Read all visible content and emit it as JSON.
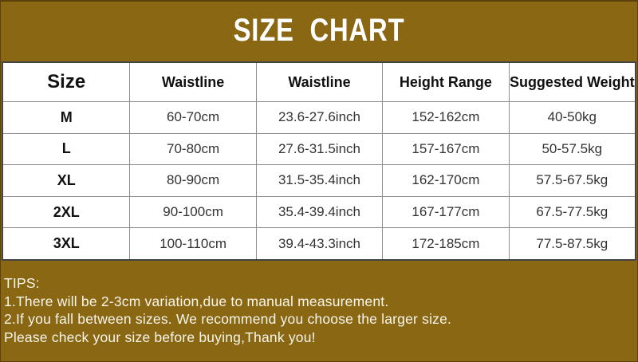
{
  "header": {
    "title": "SIZE CHART"
  },
  "chart_data": {
    "type": "table",
    "title": "SIZE CHART",
    "columns": [
      "Size",
      "Waistline",
      "Waistline",
      "Height Range",
      "Suggested Weight"
    ],
    "rows": [
      [
        "M",
        "60-70cm",
        "23.6-27.6inch",
        "152-162cm",
        "40-50kg"
      ],
      [
        "L",
        "70-80cm",
        "27.6-31.5inch",
        "157-167cm",
        "50-57.5kg"
      ],
      [
        "XL",
        "80-90cm",
        "31.5-35.4inch",
        "162-170cm",
        "57.5-67.5kg"
      ],
      [
        "2XL",
        "90-100cm",
        "35.4-39.4inch",
        "167-177cm",
        "67.5-77.5kg"
      ],
      [
        "3XL",
        "100-110cm",
        "39.4-43.3inch",
        "172-185cm",
        "77.5-87.5kg"
      ]
    ]
  },
  "tips": {
    "heading": "TIPS:",
    "lines": [
      "1.There will be 2-3cm variation,due to manual measurement.",
      "2.If you fall between sizes. We recommend you choose the larger size.",
      "Please check your size before buying,Thank you!"
    ]
  },
  "colors": {
    "page_background": "#8a6712",
    "table_background": "#ffffff",
    "title_text": "#ffffff",
    "tips_text": "#f9f6ee",
    "header_text": "#111111",
    "cell_text": "#333333",
    "grid_line": "#8e8e8e",
    "table_outline": "#454545"
  }
}
